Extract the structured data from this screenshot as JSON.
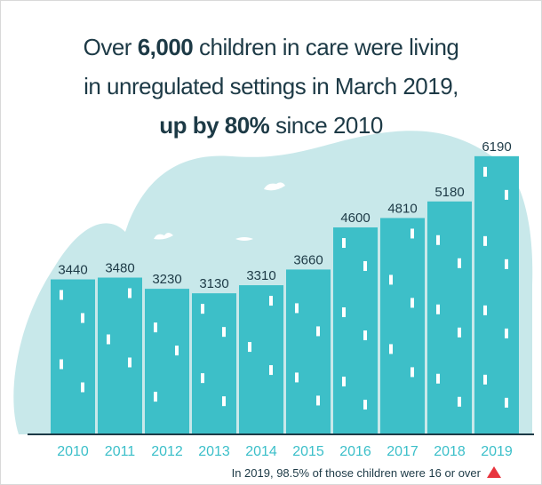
{
  "title_lines": [
    [
      {
        "text": "Over",
        "bold": false
      },
      {
        "text": "6,000",
        "bold": true
      },
      {
        "text": "children in care were living",
        "bold": false
      }
    ],
    [
      {
        "text": "in unregulated settings in March 2019,",
        "bold": false
      }
    ],
    [
      {
        "text": "up by 80%",
        "bold": true
      },
      {
        "text": "since 2010",
        "bold": false
      }
    ]
  ],
  "chart_data": {
    "type": "bar",
    "categories": [
      "2010",
      "2011",
      "2012",
      "2013",
      "2014",
      "2015",
      "2016",
      "2017",
      "2018",
      "2019"
    ],
    "values": [
      3440,
      3480,
      3230,
      3130,
      3310,
      3660,
      4600,
      4810,
      5180,
      6190
    ],
    "color": "#3dbfc8",
    "ylim": [
      0,
      7000
    ],
    "footnote": "In 2019, 98.5% of those children were 16 or over"
  }
}
